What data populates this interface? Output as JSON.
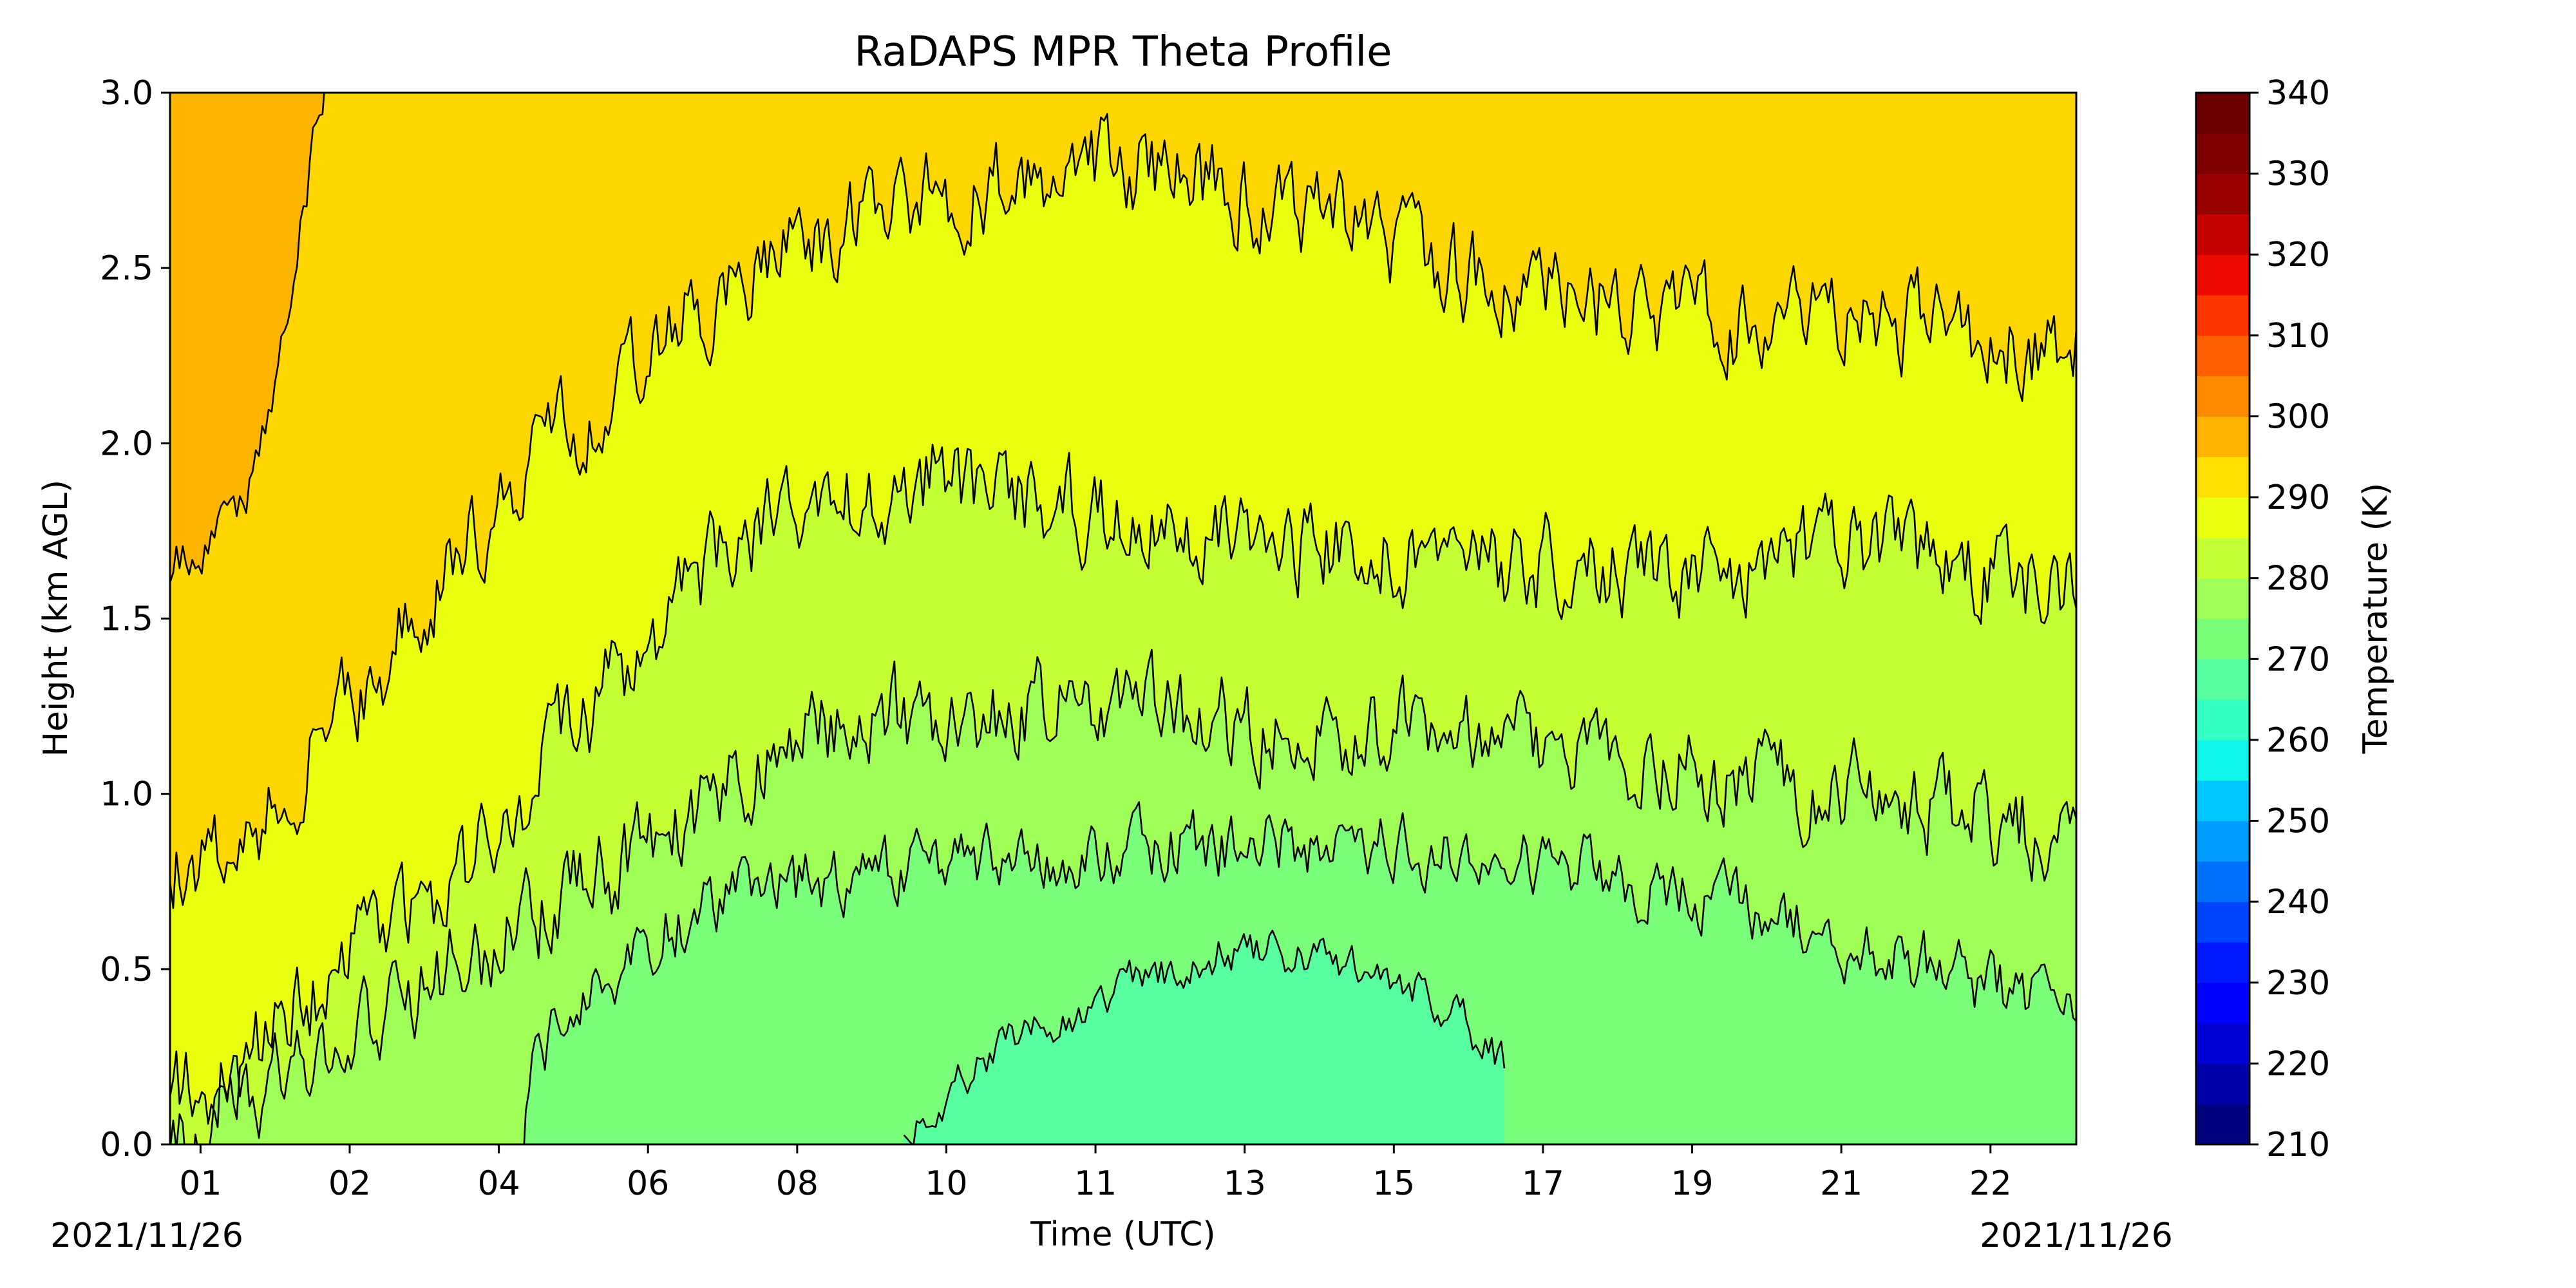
{
  "chart_data": {
    "type": "heatmap",
    "title": "RaDAPS MPR Theta Profile",
    "xlabel": "Time (UTC)",
    "ylabel": "Height (km AGL)",
    "colorbar_label": "Temperature (K)",
    "x_tick_labels": [
      "01",
      "02",
      "04",
      "06",
      "08",
      "10",
      "11",
      "13",
      "15",
      "17",
      "19",
      "21",
      "22"
    ],
    "start_date_label": "2021/11/26",
    "end_date_label": "2021/11/26",
    "y_ticks": [
      0.0,
      0.5,
      1.0,
      1.5,
      2.0,
      2.5,
      3.0
    ],
    "y_tick_labels": [
      "0.0",
      "0.5",
      "1.0",
      "1.5",
      "2.0",
      "2.5",
      "3.0"
    ],
    "ylim": [
      0.0,
      3.0
    ],
    "colorbar_range": [
      210,
      340
    ],
    "colorbar_ticks": [
      210,
      220,
      230,
      240,
      250,
      260,
      270,
      280,
      290,
      300,
      310,
      320,
      330,
      340
    ],
    "colorbar_levels": [
      210,
      215,
      220,
      225,
      230,
      235,
      240,
      245,
      250,
      255,
      260,
      265,
      270,
      275,
      280,
      285,
      290,
      295,
      300,
      305,
      310,
      315,
      320,
      325,
      330,
      335,
      340
    ],
    "colorbar_colors": [
      "#00007f",
      "#0000a9",
      "#0000d4",
      "#0000ff",
      "#0018ff",
      "#0044ff",
      "#0070ff",
      "#009cff",
      "#00c8ff",
      "#0ef5ea",
      "#34ffc4",
      "#57ff9f",
      "#7aff7a",
      "#9fff57",
      "#c4ff34",
      "#eaff0e",
      "#ffe000",
      "#ffb500",
      "#ff8a00",
      "#ff5f00",
      "#ff3500",
      "#ef0a00",
      "#c40000",
      "#990000",
      "#7f0000",
      "#6a0000"
    ],
    "contour_levels_K": [
      275,
      280,
      285,
      290,
      295,
      300
    ],
    "fill_colors": {
      "below_275": "#57ff9f",
      "275_280": "#7aff7a",
      "280_285": "#9fff57",
      "285_290": "#c4ff34",
      "290_295": "#eaff0e",
      "295_300": "#ffd700",
      "above_300": "#ffb500"
    },
    "contour_line_color": "#000000"
  }
}
